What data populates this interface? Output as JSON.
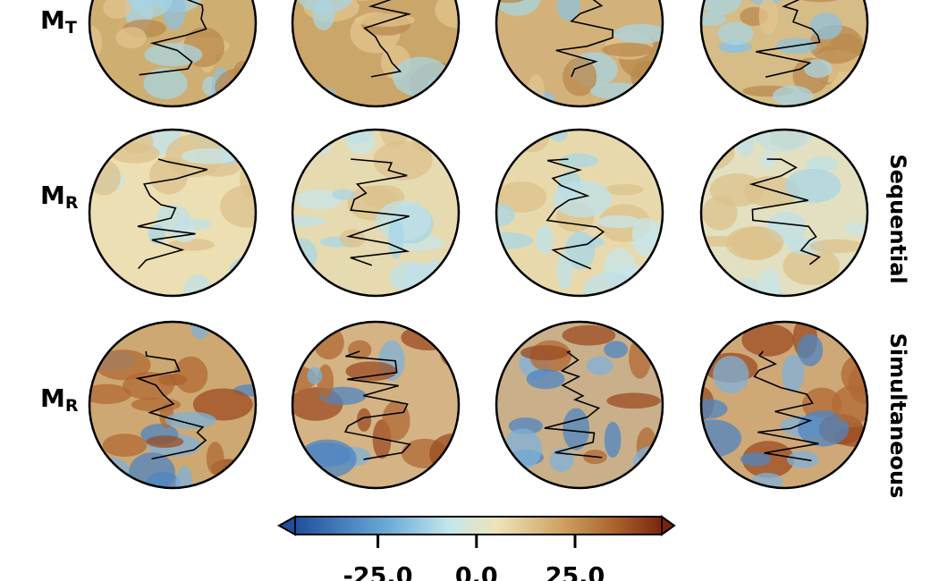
{
  "rows": [
    {
      "label": {
        "main": "M",
        "sub": "T"
      }
    },
    {
      "label": {
        "main": "M",
        "sub": "R"
      },
      "side_label": "Sequential"
    },
    {
      "label": {
        "main": "M",
        "sub": "R"
      },
      "side_label": "Simultaneous"
    }
  ],
  "colorbar": {
    "lim": [
      -46,
      47
    ],
    "ticks": [
      {
        "value": -25,
        "label": "-25.0"
      },
      {
        "value": 0,
        "label": "0.0"
      },
      {
        "value": 25,
        "label": "25.0"
      }
    ]
  }
}
